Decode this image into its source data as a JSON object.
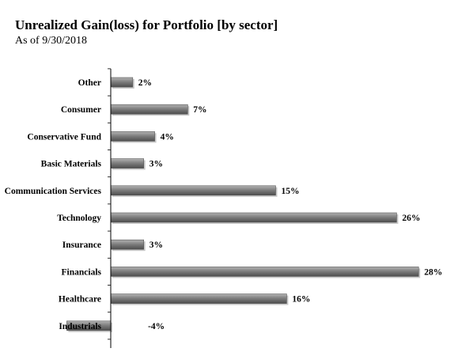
{
  "chart_data": {
    "type": "bar",
    "orientation": "horizontal",
    "title": "Unrealized Gain(loss) for Portfolio [by sector]",
    "subtitle": "As of 9/30/2018",
    "categories": [
      "Other",
      "Consumer",
      "Conservative Fund",
      "Basic Materials",
      "Communication Services",
      "Technology",
      "Insurance",
      "Financials",
      "Healthcare",
      "Industrials"
    ],
    "values": [
      2,
      7,
      4,
      3,
      15,
      26,
      3,
      28,
      16,
      -4
    ],
    "value_labels": [
      "2%",
      "7%",
      "4%",
      "3%",
      "15%",
      "26%",
      "3%",
      "28%",
      "16%",
      "-4%"
    ],
    "value_unit": "%",
    "xlim": [
      -4,
      28
    ],
    "grid": false,
    "legend": "none",
    "bar_color": "#7f7f7f"
  }
}
